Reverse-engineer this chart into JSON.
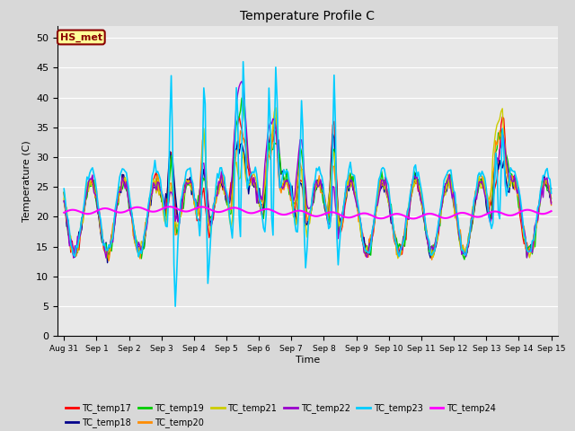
{
  "title": "Temperature Profile C",
  "xlabel": "Time",
  "ylabel": "Temperature (C)",
  "ylim": [
    0,
    52
  ],
  "yticks": [
    0,
    5,
    10,
    15,
    20,
    25,
    30,
    35,
    40,
    45,
    50
  ],
  "x_labels": [
    "Aug 31",
    "Sep 1",
    "Sep 2",
    "Sep 3",
    "Sep 4",
    "Sep 5",
    "Sep 6",
    "Sep 7",
    "Sep 8",
    "Sep 9",
    "Sep 10",
    "Sep 11",
    "Sep 12",
    "Sep 13",
    "Sep 14",
    "Sep 15"
  ],
  "annotation_text": "HS_met",
  "annotation_color": "#8B0000",
  "annotation_bg": "#FFFF99",
  "series_colors": {
    "TC_temp17": "#FF0000",
    "TC_temp18": "#00008B",
    "TC_temp19": "#00CC00",
    "TC_temp20": "#FF8C00",
    "TC_temp21": "#CCCC00",
    "TC_temp22": "#9900CC",
    "TC_temp23": "#00CCFF",
    "TC_temp24": "#FF00FF"
  },
  "background_color": "#E8E8E8",
  "grid_color": "#FFFFFF",
  "n_days": 15,
  "n_points": 360
}
